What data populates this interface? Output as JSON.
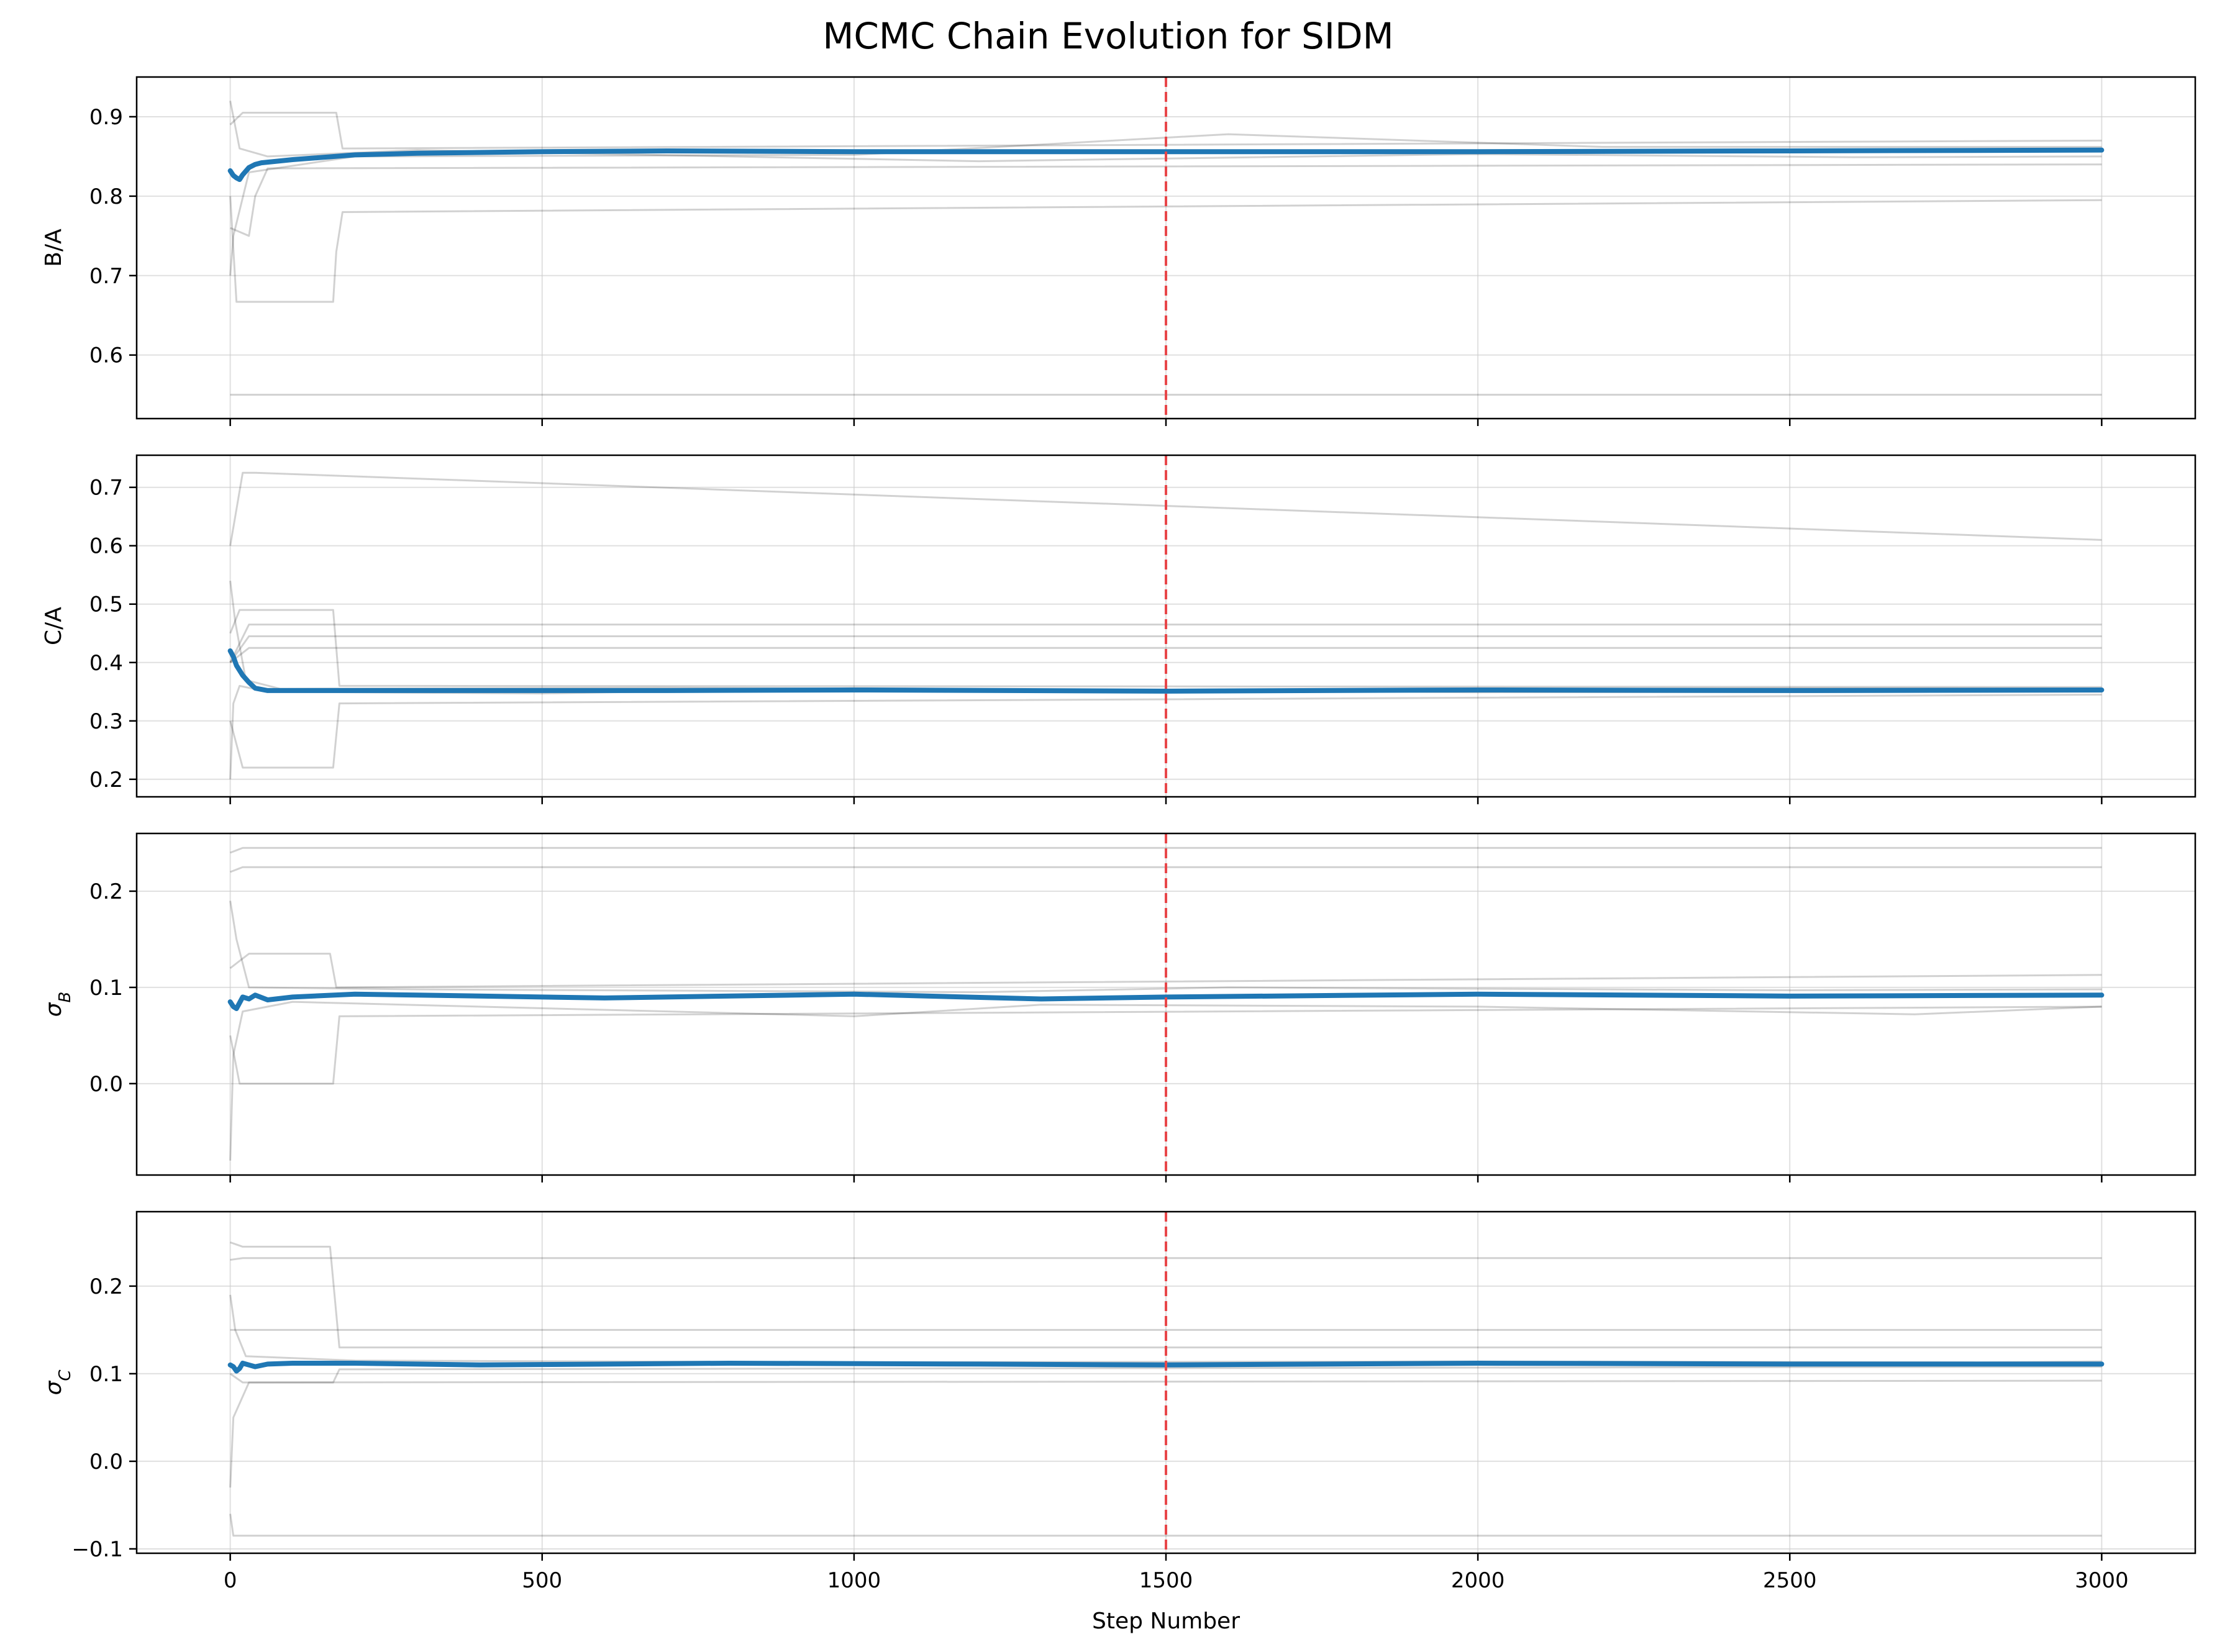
{
  "figure": {
    "title": "MCMC Chain Evolution for SIDM"
  },
  "chart_data": {
    "type": "line",
    "title": "MCMC Chain Evolution for SIDM",
    "xlabel": "Step Number",
    "xlim": [
      -150,
      3150
    ],
    "x_ticks": [
      0,
      500,
      1000,
      1500,
      2000,
      2500,
      3000
    ],
    "grid": true,
    "vline": {
      "x": 1500,
      "color": "#e8474a",
      "style": "dashed"
    },
    "colors": {
      "walkers": "#000000",
      "mean": "#1f77b4",
      "grid": "#cccccc"
    },
    "panels": [
      {
        "ylabel": "B/A",
        "ylabel_html": "B/A",
        "ylim": [
          0.52,
          0.95
        ],
        "y_ticks": [
          0.6,
          0.7,
          0.8,
          0.9
        ],
        "y_tick_labels": [
          "0.6",
          "0.7",
          "0.8",
          "0.9"
        ],
        "series": [
          {
            "role": "mean",
            "x": [
              0,
              5,
              10,
              15,
              20,
              30,
              40,
              50,
              100,
              200,
              300,
              500,
              700,
              1000,
              1500,
              2000,
              2500,
              3000
            ],
            "values": [
              0.832,
              0.826,
              0.823,
              0.821,
              0.827,
              0.836,
              0.84,
              0.842,
              0.846,
              0.852,
              0.854,
              0.856,
              0.857,
              0.856,
              0.856,
              0.856,
              0.857,
              0.858
            ]
          },
          {
            "role": "walker",
            "x": [
              0,
              10,
              15,
              50,
              3000
            ],
            "values": [
              0.55,
              0.55,
              0.55,
              0.55,
              0.55
            ]
          },
          {
            "role": "walker",
            "x": [
              0,
              10,
              165,
              170,
              180,
              3000
            ],
            "values": [
              0.8,
              0.667,
              0.667,
              0.73,
              0.78,
              0.795
            ]
          },
          {
            "role": "walker",
            "x": [
              0,
              20,
              170,
              180,
              3000
            ],
            "values": [
              0.89,
              0.905,
              0.905,
              0.86,
              0.87
            ]
          },
          {
            "role": "walker",
            "x": [
              0,
              30,
              40,
              60,
              3000
            ],
            "values": [
              0.76,
              0.75,
              0.8,
              0.835,
              0.84
            ]
          },
          {
            "role": "walker",
            "x": [
              0,
              5,
              30,
              200,
              1000,
              1600,
              2200,
              3000
            ],
            "values": [
              0.7,
              0.75,
              0.83,
              0.85,
              0.852,
              0.878,
              0.862,
              0.862
            ]
          },
          {
            "role": "walker",
            "x": [
              0,
              15,
              60,
              300,
              800,
              1200,
              2000,
              2600,
              3000
            ],
            "values": [
              0.92,
              0.86,
              0.85,
              0.858,
              0.85,
              0.844,
              0.853,
              0.849,
              0.85
            ]
          }
        ]
      },
      {
        "ylabel": "C/A",
        "ylabel_html": "C/A",
        "ylim": [
          0.17,
          0.755
        ],
        "y_ticks": [
          0.2,
          0.3,
          0.4,
          0.5,
          0.6,
          0.7
        ],
        "y_tick_labels": [
          "0.2",
          "0.3",
          "0.4",
          "0.5",
          "0.6",
          "0.7"
        ],
        "series": [
          {
            "role": "mean",
            "x": [
              0,
              5,
              10,
              20,
              30,
              40,
              60,
              100,
              300,
              700,
              1000,
              1500,
              2000,
              2500,
              3000
            ],
            "values": [
              0.42,
              0.41,
              0.395,
              0.378,
              0.366,
              0.356,
              0.352,
              0.352,
              0.352,
              0.352,
              0.353,
              0.351,
              0.353,
              0.352,
              0.353
            ]
          },
          {
            "role": "walker",
            "x": [
              0,
              20,
              40,
              3000
            ],
            "values": [
              0.6,
              0.725,
              0.725,
              0.61
            ]
          },
          {
            "role": "walker",
            "x": [
              0,
              20,
              165,
              175,
              3000
            ],
            "values": [
              0.3,
              0.22,
              0.22,
              0.33,
              0.345
            ]
          },
          {
            "role": "walker",
            "x": [
              0,
              15,
              165,
              175,
              3000
            ],
            "values": [
              0.45,
              0.49,
              0.49,
              0.36,
              0.358
            ]
          },
          {
            "role": "walker",
            "x": [
              0,
              30,
              3000
            ],
            "values": [
              0.4,
              0.465,
              0.465
            ]
          },
          {
            "role": "walker",
            "x": [
              0,
              30,
              3000
            ],
            "values": [
              0.4,
              0.445,
              0.445
            ]
          },
          {
            "role": "walker",
            "x": [
              0,
              30,
              3000
            ],
            "values": [
              0.4,
              0.425,
              0.425
            ]
          },
          {
            "role": "walker",
            "x": [
              0,
              5,
              15,
              60,
              500,
              1000,
              2000,
              3000
            ],
            "values": [
              0.2,
              0.33,
              0.36,
              0.35,
              0.347,
              0.356,
              0.349,
              0.35
            ]
          },
          {
            "role": "walker",
            "x": [
              0,
              8,
              25,
              80,
              700,
              1500,
              2500,
              3000
            ],
            "values": [
              0.54,
              0.47,
              0.37,
              0.355,
              0.357,
              0.352,
              0.356,
              0.355
            ]
          }
        ]
      },
      {
        "ylabel": "σB",
        "ylabel_html": "σ<tspan baseline-shift=\"sub\" font-size=\"26\" font-style=\"italic\">B</tspan>",
        "ylabel_italic": true,
        "ylim": [
          -0.095,
          0.26
        ],
        "y_ticks": [
          0.0,
          0.1,
          0.2
        ],
        "y_tick_labels": [
          "0.0",
          "0.1",
          "0.2"
        ],
        "series": [
          {
            "role": "mean",
            "x": [
              0,
              5,
              10,
              15,
              20,
              30,
              40,
              60,
              100,
              200,
              300,
              600,
              1000,
              1300,
              1500,
              2000,
              2500,
              3000
            ],
            "values": [
              0.085,
              0.08,
              0.078,
              0.084,
              0.09,
              0.088,
              0.092,
              0.087,
              0.09,
              0.093,
              0.092,
              0.089,
              0.093,
              0.088,
              0.09,
              0.093,
              0.091,
              0.092
            ]
          },
          {
            "role": "walker",
            "x": [
              0,
              20,
              3000
            ],
            "values": [
              0.24,
              0.245,
              0.245
            ]
          },
          {
            "role": "walker",
            "x": [
              0,
              20,
              3000
            ],
            "values": [
              0.22,
              0.225,
              0.225
            ]
          },
          {
            "role": "walker",
            "x": [
              0,
              15,
              165,
              175,
              3000
            ],
            "values": [
              0.05,
              0.0,
              0.0,
              0.07,
              0.08
            ]
          },
          {
            "role": "walker",
            "x": [
              0,
              30,
              160,
              170,
              3000
            ],
            "values": [
              0.12,
              0.135,
              0.135,
              0.1,
              0.113
            ]
          },
          {
            "role": "walker",
            "x": [
              0,
              5,
              20,
              100,
              1000,
              1300,
              2000,
              2700,
              3000
            ],
            "values": [
              -0.08,
              0.03,
              0.075,
              0.085,
              0.07,
              0.082,
              0.08,
              0.072,
              0.08
            ]
          },
          {
            "role": "walker",
            "x": [
              0,
              10,
              30,
              300,
              1200,
              1600,
              2500,
              3000
            ],
            "values": [
              0.19,
              0.15,
              0.1,
              0.098,
              0.095,
              0.1,
              0.097,
              0.098
            ]
          }
        ]
      },
      {
        "ylabel": "σC",
        "ylabel_html": "σ<tspan baseline-shift=\"sub\" font-size=\"26\" font-style=\"italic\">C</tspan>",
        "ylabel_italic": true,
        "ylim": [
          -0.105,
          0.285
        ],
        "y_ticks": [
          -0.1,
          0.0,
          0.1,
          0.2
        ],
        "y_tick_labels": [
          "−0.1",
          "0.0",
          "0.1",
          "0.2"
        ],
        "series": [
          {
            "role": "mean",
            "x": [
              0,
              5,
              10,
              15,
              20,
              30,
              40,
              60,
              100,
              200,
              400,
              800,
              1200,
              1500,
              2000,
              2500,
              3000
            ],
            "values": [
              0.11,
              0.108,
              0.103,
              0.106,
              0.112,
              0.11,
              0.108,
              0.111,
              0.112,
              0.112,
              0.11,
              0.112,
              0.111,
              0.11,
              0.112,
              0.111,
              0.111
            ]
          },
          {
            "role": "walker",
            "x": [
              0,
              20,
              160,
              175,
              3000
            ],
            "values": [
              0.25,
              0.245,
              0.245,
              0.13,
              0.13
            ]
          },
          {
            "role": "walker",
            "x": [
              0,
              20,
              3000
            ],
            "values": [
              0.23,
              0.232,
              0.232
            ]
          },
          {
            "role": "walker",
            "x": [
              0,
              30,
              3000
            ],
            "values": [
              0.15,
              0.15,
              0.15
            ]
          },
          {
            "role": "walker",
            "x": [
              0,
              20,
              165,
              175,
              3000
            ],
            "values": [
              0.1,
              0.09,
              0.09,
              0.105,
              0.108
            ]
          },
          {
            "role": "walker",
            "x": [
              0,
              5,
              15,
              3000
            ],
            "values": [
              -0.06,
              -0.085,
              -0.085,
              -0.085
            ]
          },
          {
            "role": "walker",
            "x": [
              0,
              5,
              30,
              3000
            ],
            "values": [
              -0.03,
              0.05,
              0.09,
              0.092
            ]
          },
          {
            "role": "walker",
            "x": [
              0,
              8,
              25,
              200,
              1000,
              2000,
              2800,
              3000
            ],
            "values": [
              0.19,
              0.15,
              0.12,
              0.115,
              0.113,
              0.114,
              0.113,
              0.114
            ]
          }
        ]
      }
    ]
  }
}
